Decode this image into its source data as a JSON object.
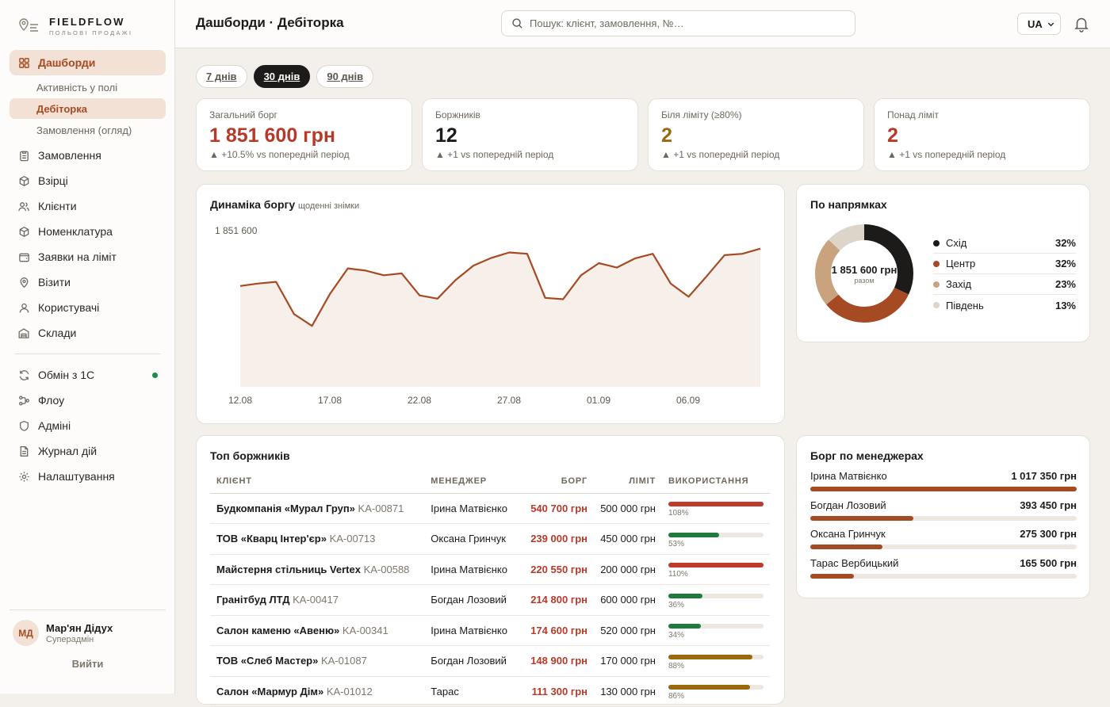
{
  "brand": {
    "name": "FIELDFLOW",
    "tagline": "ПОЛЬОВІ ПРОДАЖІ"
  },
  "sidebar": {
    "items": [
      {
        "label": "Дашборди",
        "icon": "grid-icon"
      },
      {
        "label": "Активність у полі"
      },
      {
        "label": "Дебіторка"
      },
      {
        "label": "Замовлення (огляд)"
      },
      {
        "label": "Замовлення",
        "icon": "clipboard-icon"
      },
      {
        "label": "Взірці",
        "icon": "cube-icon"
      },
      {
        "label": "Клієнти",
        "icon": "users-icon"
      },
      {
        "label": "Номенклатура",
        "icon": "box-icon"
      },
      {
        "label": "Заявки на ліміт",
        "icon": "wallet-icon"
      },
      {
        "label": "Візити",
        "icon": "map-pin-icon"
      },
      {
        "label": "Користувачі",
        "icon": "user-icon"
      },
      {
        "label": "Склади",
        "icon": "warehouse-icon"
      },
      {
        "label": "Обмін з 1С",
        "icon": "sync-icon"
      },
      {
        "label": "Флоу",
        "icon": "flow-icon"
      },
      {
        "label": "Адміні",
        "icon": "shield-icon"
      },
      {
        "label": "Журнал дій",
        "icon": "log-icon"
      },
      {
        "label": "Налаштування",
        "icon": "gear-icon"
      }
    ],
    "user": {
      "initials": "МД",
      "name": "Мар'ян Дідух",
      "role": "Суперадмін"
    },
    "logout": "Вийти"
  },
  "header": {
    "title": "Дашборди · Дебіторка",
    "search_placeholder": "Пошук: клієнт, замовлення, №…",
    "lang": "UA"
  },
  "periods": [
    "7 днів",
    "30 днів",
    "90 днів"
  ],
  "active_period": "30 днів",
  "kpis": [
    {
      "label": "Загальний борг",
      "value": "1 851 600 грн",
      "delta": "▲ +10.5% vs попередній період",
      "color": "#b63a2a"
    },
    {
      "label": "Боржників",
      "value": "12",
      "delta": "▲ +1 vs попередній період",
      "color": "#1c1b19"
    },
    {
      "label": "Біля ліміту (≥80%)",
      "value": "2",
      "delta": "▲ +1 vs попередній період",
      "color": "#9a6a0a"
    },
    {
      "label": "Понад ліміт",
      "value": "2",
      "delta": "▲ +1 vs попередній період",
      "color": "#b63a2a"
    }
  ],
  "trend": {
    "title": "Динаміка боргу",
    "subtitle": "щоденні знімки",
    "peak_label": "1 851 600"
  },
  "chart_data": [
    {
      "type": "area",
      "title": "Динаміка боргу",
      "x_ticks": [
        "12.08",
        "17.08",
        "22.08",
        "27.08",
        "01.09",
        "06.09"
      ],
      "ymax_label": "1 851 600",
      "values": [
        1716000,
        1725000,
        1731000,
        1614000,
        1571000,
        1687000,
        1780000,
        1772000,
        1755000,
        1762000,
        1682000,
        1670000,
        1737000,
        1790000,
        1818000,
        1838000,
        1833000,
        1673000,
        1668000,
        1755000,
        1799000,
        1783000,
        1816000,
        1833000,
        1725000,
        1677000,
        1751000,
        1828000,
        1833000,
        1851600
      ]
    },
    {
      "type": "pie",
      "title": "По напрямках",
      "center_value": "1 851 600 грн",
      "center_caption": "разом",
      "slices": [
        {
          "label": "Схід",
          "value": 32,
          "pct": "32%",
          "color": "#1c1b19"
        },
        {
          "label": "Центр",
          "value": 32,
          "pct": "32%",
          "color": "#a64a24"
        },
        {
          "label": "Захід",
          "value": 23,
          "pct": "23%",
          "color": "#c9a27e"
        },
        {
          "label": "Південь",
          "value": 13,
          "pct": "13%",
          "color": "#ddd5c9"
        }
      ]
    }
  ],
  "top_debtors": {
    "title": "Топ боржників",
    "columns": [
      "КЛІЄНТ",
      "МЕНЕДЖЕР",
      "БОРГ",
      "ЛІМІТ",
      "ВИКОРИСТАННЯ"
    ],
    "rows": [
      {
        "client": "Будкомпанія «Мурал Груп»",
        "code": "KA-00871",
        "manager": "Ірина Матвієнко",
        "debt": "540 700 грн",
        "limit": "500 000 грн",
        "usage": "108%",
        "usage_value": 108,
        "color": "#c0392b"
      },
      {
        "client": "ТОВ «Кварц Інтер'єр»",
        "code": "KA-00713",
        "manager": "Оксана Гринчук",
        "debt": "239 000 грн",
        "limit": "450 000 грн",
        "usage": "53%",
        "usage_value": 53,
        "color": "#1f7a3e"
      },
      {
        "client": "Майстерня стільниць Vertex",
        "code": "KA-00588",
        "manager": "Ірина Матвієнко",
        "debt": "220 550 грн",
        "limit": "200 000 грн",
        "usage": "110%",
        "usage_value": 110,
        "color": "#c0392b"
      },
      {
        "client": "Гранітбуд ЛТД",
        "code": "KA-00417",
        "manager": "Богдан Лозовий",
        "debt": "214 800 грн",
        "limit": "600 000 грн",
        "usage": "36%",
        "usage_value": 36,
        "color": "#1f7a3e"
      },
      {
        "client": "Салон каменю «Авеню»",
        "code": "KA-00341",
        "manager": "Ірина Матвієнко",
        "debt": "174 600 грн",
        "limit": "520 000 грн",
        "usage": "34%",
        "usage_value": 34,
        "color": "#1f7a3e"
      },
      {
        "client": "ТОВ «Слеб Мастер»",
        "code": "KA-01087",
        "manager": "Богдан Лозовий",
        "debt": "148 900 грн",
        "limit": "170 000 грн",
        "usage": "88%",
        "usage_value": 88,
        "color": "#9a6a0a"
      },
      {
        "client": "Салон «Мармур Дім»",
        "code": "KA-01012",
        "manager": "Тарас",
        "debt": "111 300 грн",
        "limit": "130 000 грн",
        "usage": "86%",
        "usage_value": 86,
        "color": "#9a6a0a"
      }
    ]
  },
  "managers": {
    "title": "Борг по менеджерах",
    "rows": [
      {
        "name": "Ірина Матвієнко",
        "amount": "1 017 350 грн",
        "value": 1017350
      },
      {
        "name": "Богдан Лозовий",
        "amount": "393 450 грн",
        "value": 393450
      },
      {
        "name": "Оксана Гринчук",
        "amount": "275 300 грн",
        "value": 275300
      },
      {
        "name": "Тарас Вербицький",
        "amount": "165 500 грн",
        "value": 165500
      }
    ]
  },
  "direction": {
    "title": "По напрямках"
  },
  "colors": {
    "accent": "#a64a24",
    "danger": "#b63a2a",
    "warning": "#9a6a0a",
    "ok": "#1f7a3e",
    "online": "#1f8a4c"
  }
}
